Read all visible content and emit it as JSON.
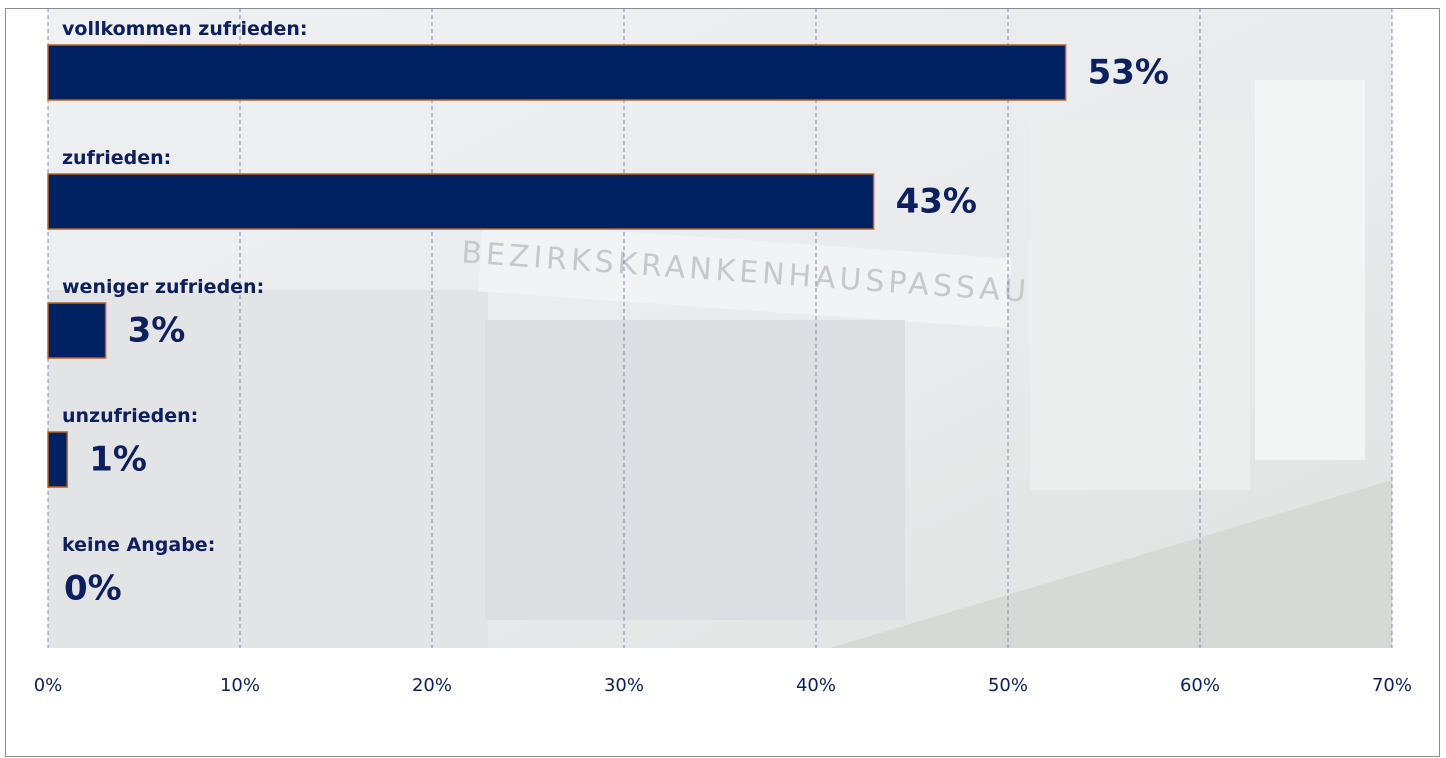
{
  "background_sign": "BEZIRKSKRANKENHAUSPASSAU",
  "chart_data": {
    "type": "hbar",
    "categories": [
      "vollkommen zufrieden:",
      "zufrieden:",
      "weniger zufrieden:",
      "unzufrieden:",
      "keine Angabe:"
    ],
    "values": [
      53,
      43,
      3,
      1,
      0
    ],
    "value_labels": [
      "53%",
      "43%",
      "3%",
      "1%",
      "0%"
    ],
    "color": "#002060",
    "xlim": [
      0,
      70
    ],
    "xticks": [
      {
        "value": 0,
        "label": "0%"
      },
      {
        "value": 10,
        "label": "10%"
      },
      {
        "value": 20,
        "label": "20%"
      },
      {
        "value": 30,
        "label": "30%"
      },
      {
        "value": 40,
        "label": "40%"
      },
      {
        "value": 50,
        "label": "50%"
      },
      {
        "value": 60,
        "label": "60%"
      },
      {
        "value": 70,
        "label": "70%"
      }
    ],
    "grid": true
  }
}
